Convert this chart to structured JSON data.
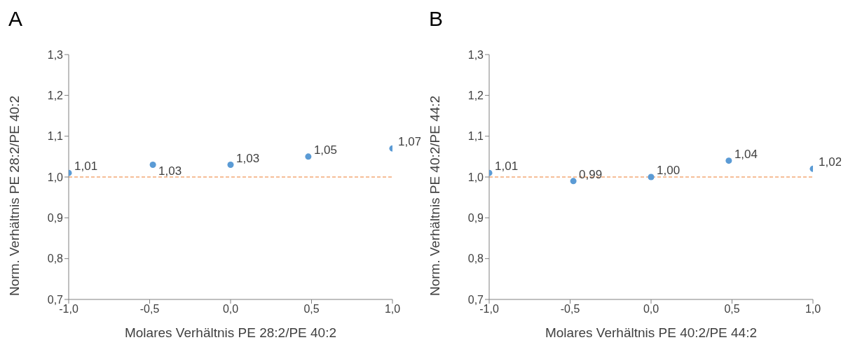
{
  "chart_data": [
    {
      "type": "scatter",
      "title": "A",
      "xlabel": "Molares Verhältnis PE 28:2/PE 40:2",
      "ylabel": "Norm. Verhältnis PE 28:2/PE 40:2",
      "x": [
        -1.0,
        -0.48,
        0.0,
        0.48,
        1.0
      ],
      "series": [
        {
          "color": "#5b9bd5",
          "values": [
            1.01,
            1.03,
            1.03,
            1.05,
            1.07
          ],
          "value_labels": [
            "1,01",
            "1,03",
            "1,03",
            "1,05",
            "1,07"
          ]
        }
      ],
      "marker": "circle",
      "grid": false,
      "legend": false,
      "xlim": [
        -1.0,
        1.0
      ],
      "xticks": [
        {
          "value": -1.0,
          "label": "-1,0"
        },
        {
          "value": -0.5,
          "label": "-0,5"
        },
        {
          "value": 0.0,
          "label": "0,0"
        },
        {
          "value": 0.5,
          "label": "0,5"
        },
        {
          "value": 1.0,
          "label": "1,0"
        }
      ],
      "ylim": [
        0.7,
        1.3
      ],
      "yticks": [
        {
          "value": 0.7,
          "label": "0,7"
        },
        {
          "value": 0.8,
          "label": "0,8"
        },
        {
          "value": 0.9,
          "label": "0,9"
        },
        {
          "value": 1.0,
          "label": "1,0"
        },
        {
          "value": 1.1,
          "label": "1,1"
        },
        {
          "value": 1.2,
          "label": "1,2"
        },
        {
          "value": 1.3,
          "label": "1,3"
        }
      ],
      "ref_lines": [
        {
          "axis": "y",
          "value": 1.0,
          "color": "#ed7d31",
          "line_style": "dashed"
        }
      ]
    },
    {
      "type": "scatter",
      "title": "B",
      "xlabel": "Molares Verhältnis PE 40:2/PE 44:2",
      "ylabel": "Norm. Verhältnis PE 40:2/PE 44:2",
      "x": [
        -1.0,
        -0.48,
        0.0,
        0.48,
        1.0
      ],
      "series": [
        {
          "color": "#5b9bd5",
          "values": [
            1.01,
            0.99,
            1.0,
            1.04,
            1.02
          ],
          "value_labels": [
            "1,01",
            "0,99",
            "1,00",
            "1,04",
            "1,02"
          ]
        }
      ],
      "marker": "circle",
      "grid": false,
      "legend": false,
      "xlim": [
        -1.0,
        1.0
      ],
      "xticks": [
        {
          "value": -1.0,
          "label": "-1,0"
        },
        {
          "value": -0.5,
          "label": "-0,5"
        },
        {
          "value": 0.0,
          "label": "0,0"
        },
        {
          "value": 0.5,
          "label": "0,5"
        },
        {
          "value": 1.0,
          "label": "1,0"
        }
      ],
      "ylim": [
        0.7,
        1.3
      ],
      "yticks": [
        {
          "value": 0.7,
          "label": "0,7"
        },
        {
          "value": 0.8,
          "label": "0,8"
        },
        {
          "value": 0.9,
          "label": "0,9"
        },
        {
          "value": 1.0,
          "label": "1,0"
        },
        {
          "value": 1.1,
          "label": "1,1"
        },
        {
          "value": 1.2,
          "label": "1,2"
        },
        {
          "value": 1.3,
          "label": "1,3"
        }
      ],
      "ref_lines": [
        {
          "axis": "y",
          "value": 1.0,
          "color": "#ed7d31",
          "line_style": "dashed"
        }
      ]
    }
  ]
}
